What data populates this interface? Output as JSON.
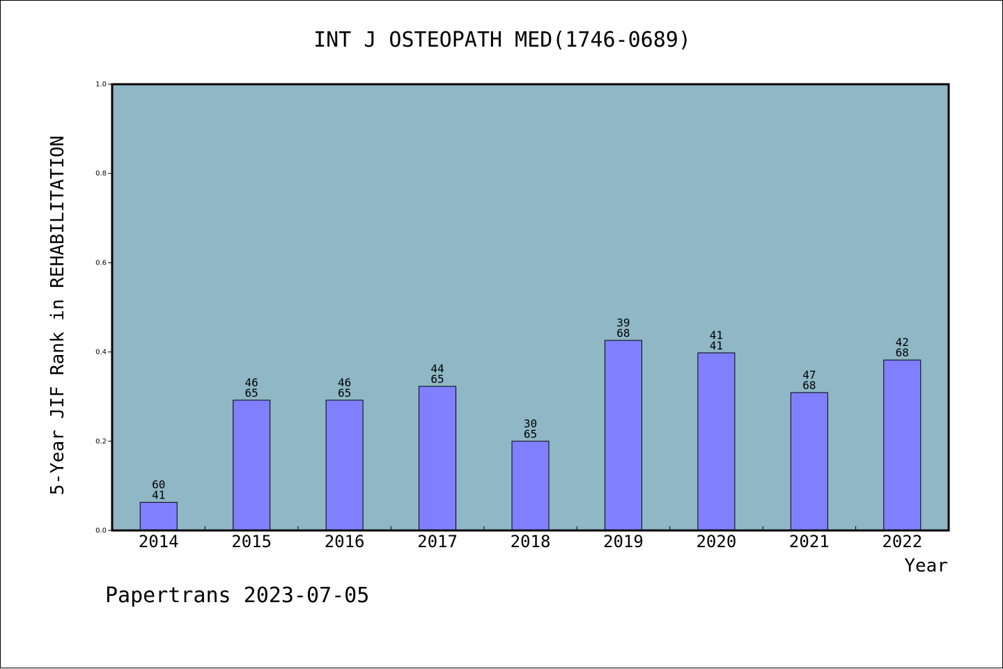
{
  "chart_data": {
    "type": "bar",
    "title": "INT J OSTEOPATH MED(1746-0689)",
    "xlabel": "Year",
    "ylabel": "5-Year JIF Rank in REHABILITATION",
    "ylim": [
      0,
      1
    ],
    "yticks": [
      "0.0",
      "0.2",
      "0.4",
      "0.6",
      "0.8",
      "1.0"
    ],
    "categories": [
      "2014",
      "2015",
      "2016",
      "2017",
      "2018",
      "2019",
      "2020",
      "2021",
      "2022"
    ],
    "values": [
      0.063,
      0.292,
      0.292,
      0.323,
      0.2,
      0.426,
      0.398,
      0.309,
      0.382
    ],
    "rank": [
      "60",
      "46",
      "46",
      "44",
      "30",
      "39",
      "41",
      "47",
      "42"
    ],
    "total": [
      "41",
      "65",
      "65",
      "65",
      "65",
      "68",
      "41",
      "68",
      "68"
    ],
    "grid": false,
    "colors": {
      "plot_background": "#8fb7c5",
      "bar_fill": "#8080ff",
      "bar_stroke": "#000000",
      "axis": "#000000"
    }
  },
  "footer": {
    "watermark": "Papertrans 2023-07-05"
  }
}
